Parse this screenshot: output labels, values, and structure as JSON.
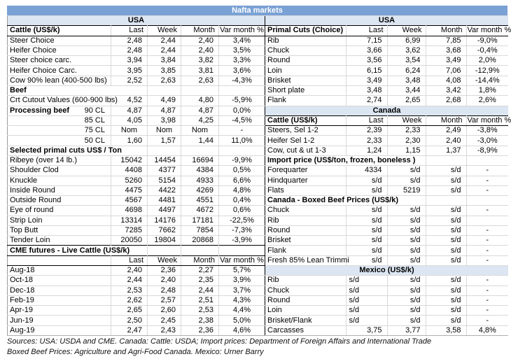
{
  "title": "Nafta markets",
  "columns": [
    "Last",
    "Week",
    "Month",
    "Var month %"
  ],
  "colors": {
    "title_bar": "#7AA1D4",
    "band": "#DCE6F2",
    "grid": "#D9D9D9"
  },
  "left": {
    "rows": [
      {
        "t": "band",
        "label": "USA"
      },
      {
        "t": "header",
        "label": "Cattle (US$/k)"
      },
      {
        "t": "data",
        "label": "Steer Choice",
        "values": [
          "2,48",
          "2,44",
          "2,40",
          "3,4%"
        ]
      },
      {
        "t": "data",
        "label": "Heifer Choice",
        "values": [
          "2,48",
          "2,44",
          "2,40",
          "3,5%"
        ]
      },
      {
        "t": "data",
        "label": "Steer choice carc.",
        "values": [
          "3,94",
          "3,84",
          "3,82",
          "3,3%"
        ]
      },
      {
        "t": "data",
        "label": "Heifer Choice Carc.",
        "values": [
          "3,95",
          "3,85",
          "3,81",
          "3,6%"
        ]
      },
      {
        "t": "data",
        "label": "Cow 90% lean (400-500 lbs)",
        "values": [
          "2,52",
          "2,63",
          "2,63",
          "-4,3%"
        ]
      },
      {
        "t": "section",
        "label": "Beef",
        "span": 2
      },
      {
        "t": "data",
        "label": "Crt Cutout Values (600-900 lbs)",
        "values": [
          "4,52",
          "4,49",
          "4,80",
          "-5,9%"
        ]
      },
      {
        "t": "data",
        "label": "Processing beef",
        "label2": "90 CL",
        "labelBold": true,
        "values": [
          "4,87",
          "4,87",
          "4,87",
          "0,0%"
        ]
      },
      {
        "t": "data",
        "label": "85 CL",
        "labelAlign": "right",
        "values": [
          "4,05",
          "3,98",
          "4,25",
          "-4,5%"
        ]
      },
      {
        "t": "data",
        "label": "75 CL",
        "labelAlign": "right",
        "valAlign": "center",
        "values": [
          "Nom",
          "Nom",
          "Nom",
          "-"
        ]
      },
      {
        "t": "data",
        "label": "50 CL",
        "labelAlign": "right",
        "values": [
          "1,60",
          "1,57",
          "1,44",
          "11,0%"
        ]
      },
      {
        "t": "section",
        "label": "Selected primal cuts US$ / Ton",
        "span": 2
      },
      {
        "t": "data",
        "label": "Ribeye (over 14 lb.)",
        "values": [
          "15042",
          "14454",
          "16694",
          "-9,9%"
        ]
      },
      {
        "t": "data",
        "label": "Shoulder Clod",
        "values": [
          "4408",
          "4377",
          "4384",
          "0,5%"
        ]
      },
      {
        "t": "data",
        "label": "Knuckle",
        "values": [
          "5260",
          "5154",
          "4933",
          "6,6%"
        ]
      },
      {
        "t": "data",
        "label": "Inside Round",
        "values": [
          "4475",
          "4422",
          "4269",
          "4,8%"
        ]
      },
      {
        "t": "data",
        "label": "Outside Round",
        "values": [
          "4567",
          "4481",
          "4551",
          "0,4%"
        ]
      },
      {
        "t": "data",
        "label": "Eye of round",
        "values": [
          "4698",
          "4497",
          "4672",
          "0,6%"
        ]
      },
      {
        "t": "data",
        "label": "Strip Loin",
        "values": [
          "13314",
          "14176",
          "17181",
          "-22,5%"
        ]
      },
      {
        "t": "data",
        "label": "Top Butt",
        "values": [
          "7285",
          "7662",
          "7854",
          "-7,3%"
        ]
      },
      {
        "t": "data",
        "label": "Tender Loin",
        "values": [
          "20050",
          "19804",
          "20868",
          "-3,9%"
        ]
      },
      {
        "t": "section",
        "label": "CME futures - Live Cattle (US$/k)",
        "span": 2,
        "topline": true
      },
      {
        "t": "header",
        "label": ""
      },
      {
        "t": "data",
        "label": "Aug-18",
        "values": [
          "2,40",
          "2,36",
          "2,27",
          "5,7%"
        ]
      },
      {
        "t": "data",
        "label": "Oct-18",
        "values": [
          "2,44",
          "2,40",
          "2,35",
          "3,9%"
        ]
      },
      {
        "t": "data",
        "label": "Dec-18",
        "values": [
          "2,53",
          "2,48",
          "2,44",
          "3,7%"
        ]
      },
      {
        "t": "data",
        "label": "Feb-19",
        "values": [
          "2,62",
          "2,57",
          "2,51",
          "4,3%"
        ]
      },
      {
        "t": "data",
        "label": "Apr-19",
        "values": [
          "2,65",
          "2,60",
          "2,53",
          "4,4%"
        ]
      },
      {
        "t": "data",
        "label": "Jun-19",
        "values": [
          "2,50",
          "2,45",
          "2,38",
          "5,0%"
        ]
      },
      {
        "t": "data",
        "label": "Aug-19",
        "values": [
          "2,47",
          "2,43",
          "2,36",
          "4,6%"
        ]
      }
    ]
  },
  "right": {
    "rows": [
      {
        "t": "band",
        "label": "USA"
      },
      {
        "t": "header",
        "label": "Primal Cuts (Choice)"
      },
      {
        "t": "data",
        "label": "Rib",
        "values": [
          "7,15",
          "6,99",
          "7,85",
          "-9,0%"
        ]
      },
      {
        "t": "data",
        "label": "Chuck",
        "values": [
          "3,66",
          "3,62",
          "3,68",
          "-0,4%"
        ]
      },
      {
        "t": "data",
        "label": "Round",
        "values": [
          "3,56",
          "3,54",
          "3,49",
          "2,0%"
        ]
      },
      {
        "t": "data",
        "label": "Loin",
        "values": [
          "6,15",
          "6,24",
          "7,06",
          "-12,9%"
        ]
      },
      {
        "t": "data",
        "label": "Brisket",
        "values": [
          "3,49",
          "3,48",
          "4,08",
          "-14,4%"
        ]
      },
      {
        "t": "data",
        "label": "Short plate",
        "values": [
          "3,48",
          "3,44",
          "3,42",
          "1,8%"
        ]
      },
      {
        "t": "data",
        "label": "Flank",
        "values": [
          "2,74",
          "2,65",
          "2,68",
          "2,6%"
        ]
      },
      {
        "t": "band",
        "label": "Canada"
      },
      {
        "t": "header",
        "label": "Cattle (US$/k)"
      },
      {
        "t": "data",
        "label": "Steers, Sel 1-2",
        "values": [
          "2,39",
          "2,33",
          "2,49",
          "-3,8%"
        ]
      },
      {
        "t": "data",
        "label": "Heifer Sel 1-2",
        "values": [
          "2,33",
          "2,30",
          "2,40",
          "-3,0%"
        ]
      },
      {
        "t": "data",
        "label": "Cow, cut & ut 1-3",
        "values": [
          "1,24",
          "1,15",
          "1,37",
          "-8,9%"
        ]
      },
      {
        "t": "section",
        "label": "Import price (US$/ton, frozen, boneless )",
        "span": 3
      },
      {
        "t": "data",
        "label": "Forequarter",
        "values": [
          "4334",
          "s/d",
          "s/d",
          "-"
        ]
      },
      {
        "t": "data",
        "label": "Hindquarter",
        "values": [
          "s/d",
          "s/d",
          "s/d",
          "-"
        ]
      },
      {
        "t": "data",
        "label": "Flats",
        "values": [
          "s/d",
          "5219",
          "s/d",
          "-"
        ]
      },
      {
        "t": "section",
        "label": "Canada - Boxed Beef Prices (US$/k)",
        "span": 3
      },
      {
        "t": "data",
        "label": "Chuck",
        "values": [
          "s/d",
          "s/d",
          "s/d",
          "-"
        ]
      },
      {
        "t": "data",
        "label": "Rib",
        "values": [
          "s/d",
          "s/d",
          "s/d",
          ""
        ]
      },
      {
        "t": "data",
        "label": "Round",
        "values": [
          "s/d",
          "s/d",
          "s/d",
          "-"
        ]
      },
      {
        "t": "data",
        "label": "Brisket",
        "values": [
          "s/d",
          "s/d",
          "s/d",
          "-"
        ]
      },
      {
        "t": "data",
        "label": "Flank",
        "values": [
          "s/d",
          "s/d",
          "s/d",
          "-"
        ]
      },
      {
        "t": "data",
        "label": "Fresh 85% Lean Trimmi",
        "values": [
          "s/d",
          "s/d",
          "s/d",
          "-"
        ]
      },
      {
        "t": "band",
        "label": "Mexico (US$/k)"
      },
      {
        "t": "data",
        "label": "Rib",
        "firstLeft": true,
        "values": [
          "s/d",
          "s/d",
          "s/d",
          "-"
        ]
      },
      {
        "t": "data",
        "label": "Chuck",
        "firstLeft": true,
        "values": [
          "s/d",
          "s/d",
          "s/d",
          "-"
        ]
      },
      {
        "t": "data",
        "label": "Round",
        "firstLeft": true,
        "values": [
          "s/d",
          "s/d",
          "s/d",
          "-"
        ]
      },
      {
        "t": "data",
        "label": "Loin",
        "firstLeft": true,
        "values": [
          "s/d",
          "s/d",
          "s/d",
          "-"
        ]
      },
      {
        "t": "data",
        "label": "Brisket/Flank",
        "firstLeft": true,
        "values": [
          "s/d",
          "s/d",
          "s/d",
          "-"
        ]
      },
      {
        "t": "data",
        "label": "Carcasses",
        "values": [
          "3,75",
          "3,77",
          "3,58",
          "4,8%"
        ]
      }
    ]
  },
  "footer": {
    "line1": "Sources: USA: USDA and CME. Canada: Cattle: USDA; Import prices: Department of Foreign Affairs and International Trade",
    "line2": "Boxed Beef Prices: Agriculture and Agri-Food Canada. Mexico: Urner Barry"
  }
}
